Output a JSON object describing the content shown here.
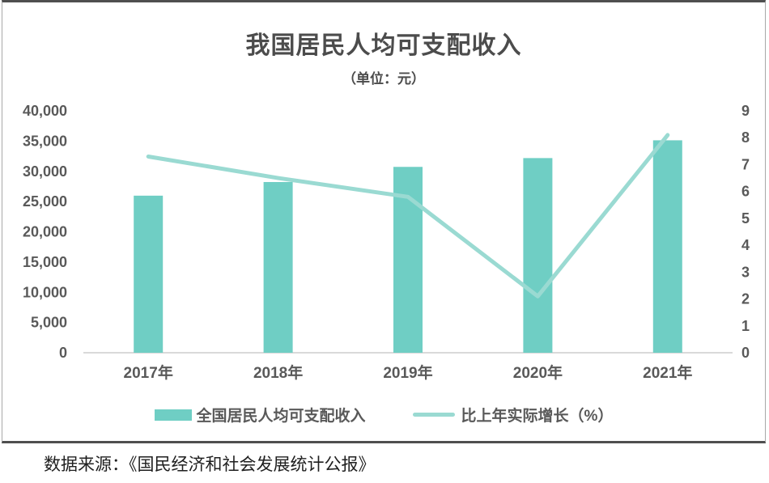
{
  "chart_data": {
    "type": "combo",
    "title": "我国居民人均可支配收入",
    "subtitle": "（单位：元）",
    "categories": [
      "2017年",
      "2018年",
      "2019年",
      "2020年",
      "2021年"
    ],
    "series": [
      {
        "name": "全国居民人均可支配收入",
        "chart_type": "bar",
        "axis": "left",
        "color": "#6FCEC4",
        "values": [
          25974,
          28228,
          30733,
          32189,
          35128
        ]
      },
      {
        "name": "比上年实际增长（%）",
        "chart_type": "line",
        "axis": "right",
        "color": "#9ADAD2",
        "values": [
          7.3,
          6.5,
          5.8,
          2.1,
          8.1
        ]
      }
    ],
    "left_axis": {
      "min": 0,
      "max": 40000,
      "step": 5000
    },
    "right_axis": {
      "min": 0,
      "max": 9,
      "step": 1
    },
    "legend_position": "bottom",
    "grid": false,
    "baseline_color": "#d9d9d9",
    "tick_text_color": "#595959"
  },
  "footer": {
    "source_note": "数据来源：《国民经济和社会发展统计公报》"
  }
}
